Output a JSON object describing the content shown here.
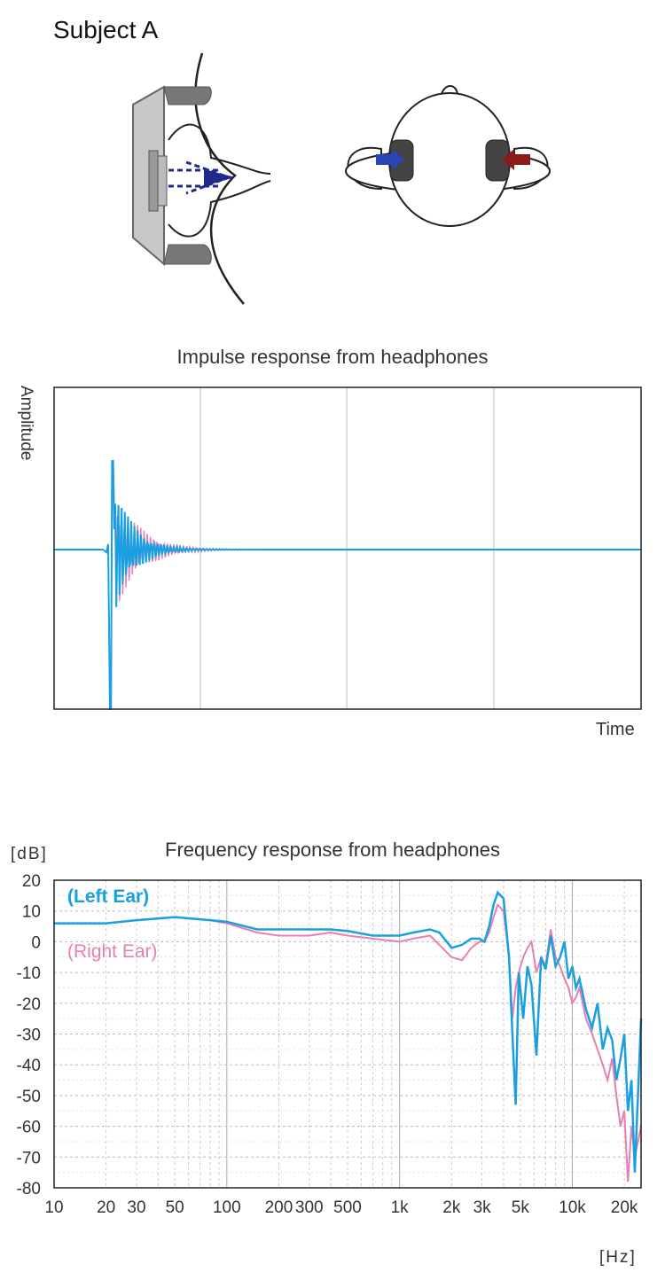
{
  "header": {
    "subject": "Subject A"
  },
  "icons": {
    "earphone": "in-ear-earphone-cross-section-icon",
    "head": "head-top-view-with-headphones-icon"
  },
  "colors": {
    "left": "#1a9fe0",
    "right": "#e87fb2",
    "left_arrow": "#2a45b8",
    "right_arrow": "#8b1a1a"
  },
  "chart_data": [
    {
      "type": "line",
      "title": "Impulse response from headphones",
      "xlabel": "Time",
      "ylabel": "Amplitude",
      "grid": true,
      "series": [
        {
          "name": "Left Ear",
          "color": "#1a9fe0"
        },
        {
          "name": "Right Ear",
          "color": "#e87fb2"
        }
      ]
    },
    {
      "type": "line",
      "title": "Frequency response from headphones",
      "y_unit": "[dB]",
      "x_unit": "[Hz]",
      "x_scale": "log",
      "xlim": [
        10,
        25000
      ],
      "ylim": [
        -80,
        20
      ],
      "yticks": [
        20,
        10,
        0,
        -10,
        -20,
        -30,
        -40,
        -50,
        -60,
        -70,
        -80
      ],
      "xticks": [
        {
          "value": 10,
          "label": "10"
        },
        {
          "value": 20,
          "label": "20"
        },
        {
          "value": 30,
          "label": "30"
        },
        {
          "value": 50,
          "label": "50"
        },
        {
          "value": 100,
          "label": "100"
        },
        {
          "value": 200,
          "label": "200"
        },
        {
          "value": 300,
          "label": "300"
        },
        {
          "value": 500,
          "label": "500"
        },
        {
          "value": 1000,
          "label": "1k"
        },
        {
          "value": 2000,
          "label": "2k"
        },
        {
          "value": 3000,
          "label": "3k"
        },
        {
          "value": 5000,
          "label": "5k"
        },
        {
          "value": 10000,
          "label": "10k"
        },
        {
          "value": 20000,
          "label": "20k"
        }
      ],
      "legend": [
        "(Left Ear)",
        "(Right Ear)"
      ],
      "legend_position": "top-left",
      "grid": true,
      "series": [
        {
          "name": "(Left Ear)",
          "color": "#1a9fe0",
          "x": [
            10,
            20,
            30,
            50,
            80,
            100,
            150,
            200,
            300,
            400,
            500,
            700,
            1000,
            1200,
            1500,
            1700,
            2000,
            2300,
            2600,
            2900,
            3100,
            3300,
            3500,
            3700,
            4000,
            4300,
            4500,
            4700,
            4900,
            5200,
            5500,
            5800,
            6200,
            6600,
            7000,
            7500,
            8000,
            8500,
            9000,
            9500,
            10000,
            10500,
            11000,
            12000,
            13000,
            14000,
            15000,
            16000,
            17000,
            18000,
            19000,
            20000,
            21000,
            22000,
            23000,
            24000,
            25000
          ],
          "y": [
            6,
            6,
            7,
            8,
            7,
            6.5,
            4,
            4,
            4,
            4,
            3.5,
            2,
            2,
            3,
            4,
            3,
            -2,
            -1,
            1,
            1,
            0,
            5,
            12,
            16,
            14,
            -5,
            -30,
            -53,
            -10,
            -25,
            -8,
            -14,
            -37,
            -5,
            -9,
            2,
            -8,
            -5,
            0,
            -12,
            -8,
            -15,
            -12,
            -22,
            -28,
            -20,
            -35,
            -28,
            -32,
            -45,
            -38,
            -30,
            -55,
            -45,
            -75,
            -50,
            -25
          ]
        },
        {
          "name": "(Right Ear)",
          "color": "#e87fb2",
          "x": [
            10,
            20,
            30,
            50,
            80,
            100,
            150,
            200,
            300,
            400,
            500,
            700,
            1000,
            1200,
            1500,
            1700,
            2000,
            2300,
            2600,
            2900,
            3100,
            3300,
            3500,
            3700,
            4000,
            4300,
            4500,
            4700,
            4900,
            5200,
            5500,
            5800,
            6200,
            6600,
            7000,
            7500,
            8000,
            8500,
            9000,
            9500,
            10000,
            10500,
            11000,
            12000,
            13000,
            14000,
            15000,
            16000,
            17000,
            18000,
            19000,
            20000,
            21000,
            22000,
            23000,
            24000,
            25000
          ],
          "y": [
            6,
            6,
            7,
            8,
            7,
            6,
            3,
            2,
            2,
            3,
            2,
            1,
            0,
            1,
            2,
            -1,
            -5,
            -6,
            -2,
            0,
            0,
            3,
            8,
            12,
            10,
            -5,
            -25,
            -15,
            -10,
            -5,
            -2,
            0,
            -10,
            -5,
            -8,
            4,
            -5,
            -8,
            -12,
            -15,
            -20,
            -18,
            -15,
            -25,
            -30,
            -35,
            -40,
            -45,
            -38,
            -50,
            -60,
            -55,
            -78,
            -60,
            -70,
            -65,
            -60
          ]
        }
      ]
    }
  ]
}
